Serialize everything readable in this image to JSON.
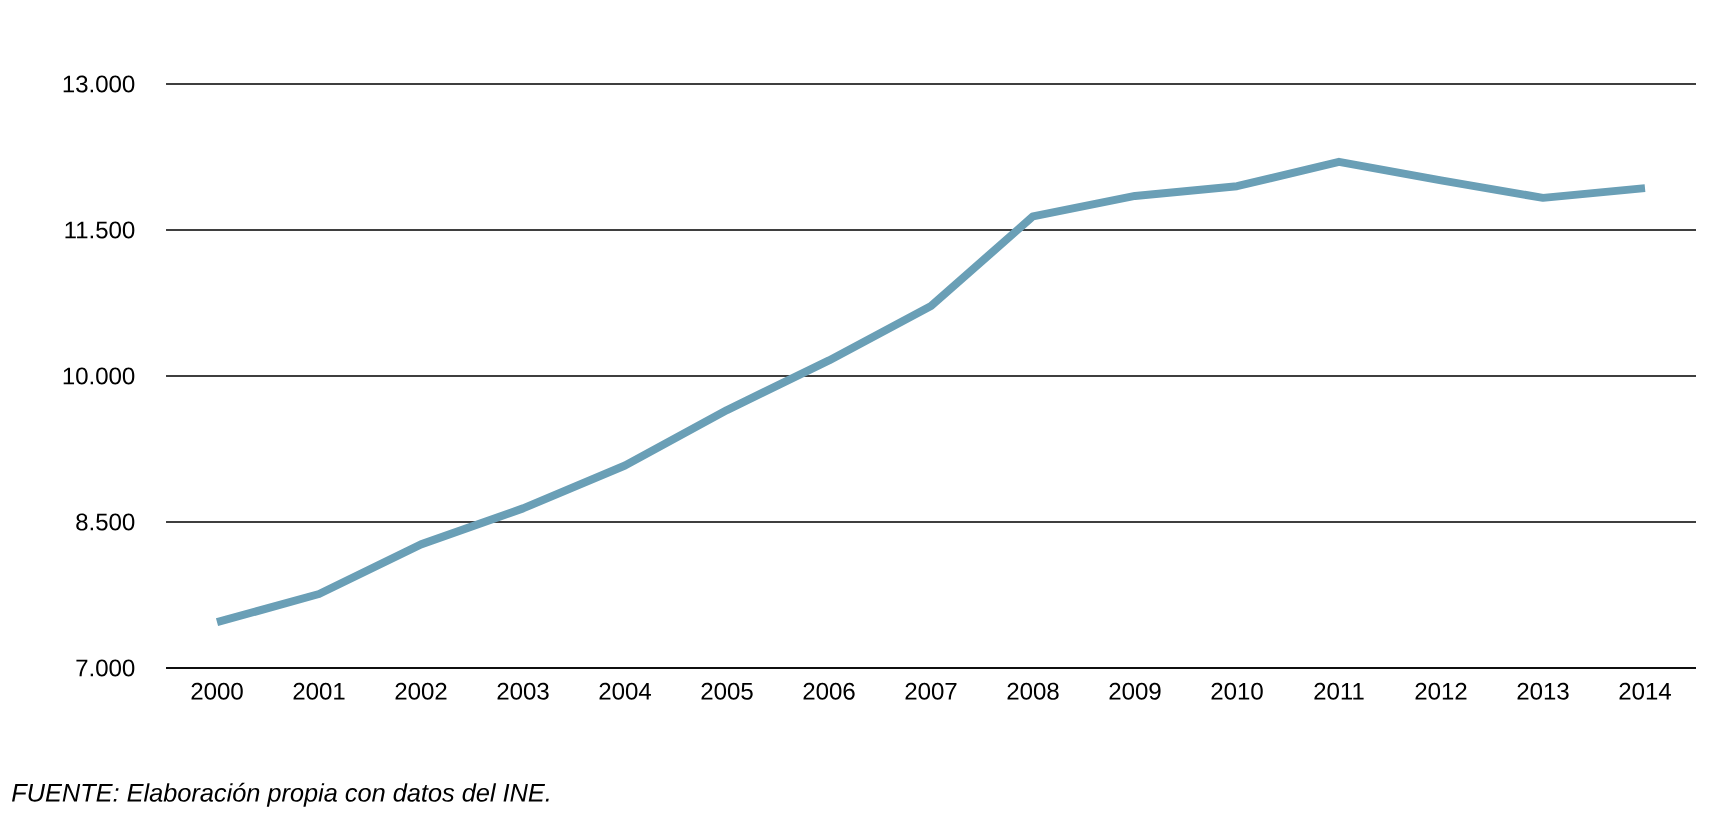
{
  "chart_data": {
    "type": "line",
    "categories": [
      "2000",
      "2001",
      "2002",
      "2003",
      "2004",
      "2005",
      "2006",
      "2007",
      "2008",
      "2009",
      "2010",
      "2011",
      "2012",
      "2013",
      "2014"
    ],
    "series": [
      {
        "color": "#6a9fb6",
        "values": [
          7470,
          7760,
          8270,
          8640,
          9080,
          9650,
          10160,
          10720,
          11640,
          11850,
          11950,
          12200,
          12010,
          11830,
          11930
        ]
      }
    ],
    "ylim": [
      7000,
      13000
    ],
    "yticks": [
      {
        "value": 7000,
        "label": "7.000"
      },
      {
        "value": 8500,
        "label": "8.500"
      },
      {
        "value": 10000,
        "label": "10.000"
      },
      {
        "value": 11500,
        "label": "11.500"
      },
      {
        "value": 13000,
        "label": "13.000"
      }
    ],
    "grid": "y",
    "marker": "none",
    "line_style": "solid",
    "annotations": [
      "FUENTE: Elaboración propia con datos del INE."
    ]
  }
}
